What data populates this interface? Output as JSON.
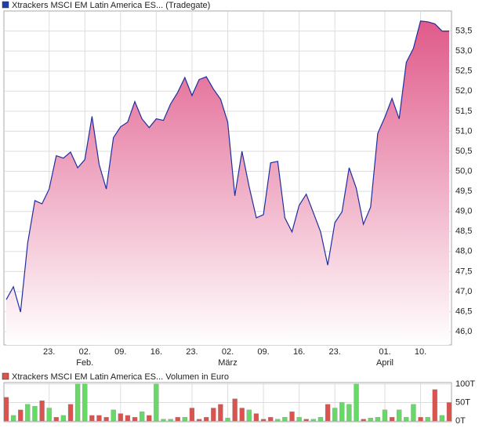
{
  "chart_data": [
    {
      "type": "area",
      "title": "Xtrackers MSCI EM Latin America ES... (Tradegate)",
      "legend_color": "#1f3fa8",
      "color": "#1f2fa0",
      "fill_color": "#e05a8a",
      "categories": [
        null,
        null,
        null,
        null,
        null,
        null,
        "23.",
        null,
        null,
        null,
        null,
        "02.",
        null,
        null,
        null,
        null,
        "09.",
        null,
        null,
        null,
        null,
        "16.",
        null,
        null,
        null,
        null,
        "23.",
        null,
        null,
        null,
        null,
        "02.",
        null,
        null,
        null,
        null,
        "09.",
        null,
        null,
        null,
        null,
        "16.",
        null,
        null,
        null,
        null,
        "23.",
        null,
        null,
        null,
        null,
        null,
        null,
        "01.",
        null,
        null,
        null,
        null,
        "10.",
        null,
        null,
        null,
        null
      ],
      "month_labels": [
        null,
        null,
        null,
        null,
        null,
        null,
        null,
        null,
        null,
        null,
        null,
        "Feb.",
        null,
        null,
        null,
        null,
        null,
        null,
        null,
        null,
        null,
        null,
        null,
        null,
        null,
        null,
        null,
        null,
        null,
        null,
        null,
        "März",
        null,
        null,
        null,
        null,
        null,
        null,
        null,
        null,
        null,
        null,
        null,
        null,
        null,
        null,
        null,
        null,
        null,
        null,
        null,
        null,
        null,
        "April",
        null,
        null,
        null,
        null,
        null,
        null,
        null,
        null,
        null
      ],
      "values": [
        46.8,
        47.12,
        46.49,
        48.21,
        49.27,
        49.19,
        49.56,
        50.39,
        50.33,
        50.48,
        50.09,
        50.29,
        51.37,
        50.17,
        49.56,
        50.84,
        51.11,
        51.23,
        51.74,
        51.31,
        51.09,
        51.31,
        51.27,
        51.68,
        51.97,
        52.34,
        51.89,
        52.29,
        52.36,
        52.05,
        51.8,
        51.23,
        49.39,
        50.5,
        49.62,
        48.84,
        48.92,
        50.21,
        50.25,
        48.84,
        48.49,
        49.15,
        49.43,
        48.96,
        48.49,
        47.66,
        48.72,
        48.99,
        50.09,
        49.58,
        48.68,
        49.11,
        50.95,
        51.35,
        51.82,
        51.31,
        52.72,
        53.07,
        53.75,
        53.73,
        53.68,
        53.5,
        53.5
      ],
      "ylim": [
        45.67,
        54.0
      ],
      "yticks": [
        {
          "value": 46,
          "label": "46,0"
        },
        {
          "value": 46.5,
          "label": "46,5"
        },
        {
          "value": 47,
          "label": "47,0"
        },
        {
          "value": 47.5,
          "label": "47,5"
        },
        {
          "value": 48,
          "label": "48,0"
        },
        {
          "value": 48.5,
          "label": "48,5"
        },
        {
          "value": 49,
          "label": "49,0"
        },
        {
          "value": 49.5,
          "label": "49,5"
        },
        {
          "value": 50,
          "label": "50,0"
        },
        {
          "value": 50.5,
          "label": "50,5"
        },
        {
          "value": 51,
          "label": "51,0"
        },
        {
          "value": 51.5,
          "label": "51,5"
        },
        {
          "value": 52,
          "label": "52,0"
        },
        {
          "value": 52.5,
          "label": "52,5"
        },
        {
          "value": 53,
          "label": "53,0"
        },
        {
          "value": 53.5,
          "label": "53,5"
        }
      ],
      "grid": true
    },
    {
      "type": "bar",
      "title": "Xtrackers MSCI EM Latin America ES... Volumen in Euro",
      "legend_color": "#d9534f",
      "values": [
        64,
        15,
        30,
        45,
        40,
        55,
        35,
        10,
        15,
        45,
        100,
        100,
        15,
        15,
        10,
        30,
        20,
        15,
        10,
        25,
        15,
        100,
        5,
        5,
        10,
        10,
        35,
        5,
        10,
        35,
        45,
        8,
        60,
        35,
        30,
        20,
        5,
        10,
        5,
        10,
        25,
        10,
        5,
        5,
        10,
        45,
        35,
        50,
        45,
        100,
        5,
        8,
        10,
        30,
        10,
        30,
        10,
        45,
        10,
        10,
        85,
        15,
        50
      ],
      "colors": [
        "#d9534f",
        "#66d966",
        "#d9534f",
        "#66d966",
        "#66d966",
        "#d9534f",
        "#66d966",
        "#d9534f",
        "#66d966",
        "#d9534f",
        "#66d966",
        "#66d966",
        "#d9534f",
        "#d9534f",
        "#d9534f",
        "#66d966",
        "#d9534f",
        "#d9534f",
        "#d9534f",
        "#66d966",
        "#d9534f",
        "#66d966",
        "#66d966",
        "#66d966",
        "#d9534f",
        "#66d966",
        "#d9534f",
        "#d9534f",
        "#d9534f",
        "#d9534f",
        "#d9534f",
        "#66d966",
        "#d9534f",
        "#d9534f",
        "#66d966",
        "#d9534f",
        "#d9534f",
        "#d9534f",
        "#66d966",
        "#66d966",
        "#d9534f",
        "#66d966",
        "#d9534f",
        "#66d966",
        "#66d966",
        "#d9534f",
        "#66d966",
        "#66d966",
        "#66d966",
        "#66d966",
        "#d9534f",
        "#66d966",
        "#66d966",
        "#66d966",
        "#d9534f",
        "#66d966",
        "#66d966",
        "#66d966",
        "#d9534f",
        "#66d966",
        "#d9534f",
        "#66d966",
        "#d9534f"
      ],
      "ylim": [
        0,
        104
      ],
      "yticks": [
        {
          "value": 0,
          "label": "0T"
        },
        {
          "value": 50,
          "label": "50T"
        },
        {
          "value": 100,
          "label": "100T"
        }
      ],
      "grid": true
    }
  ]
}
